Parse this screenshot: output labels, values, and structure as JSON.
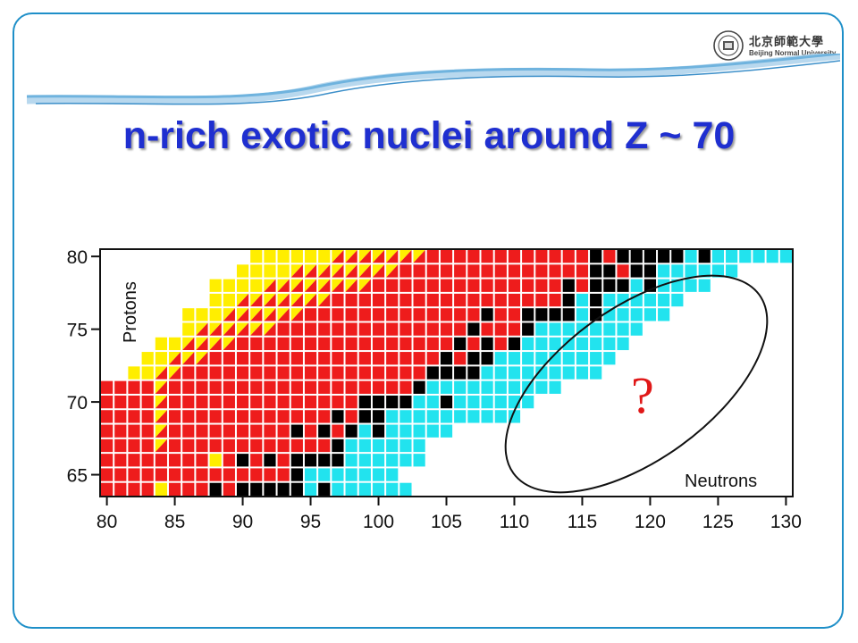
{
  "slide": {
    "title": "n-rich exotic nuclei around Z ~ 70",
    "accent_color": "#1f2fd0",
    "frame_color": "#1e8fc8"
  },
  "logo": {
    "name_cn": "北京師範大學",
    "name_en": "Beijing Normal University",
    "icon": "university-seal-icon"
  },
  "chart_data": {
    "type": "heatmap",
    "title": "",
    "xlabel": "Neutrons",
    "ylabel": "Protons",
    "xlim": [
      79.5,
      130.5
    ],
    "ylim": [
      63.5,
      80.5
    ],
    "x_ticks": [
      80,
      85,
      90,
      95,
      100,
      105,
      110,
      115,
      120,
      125,
      130
    ],
    "y_ticks": [
      65,
      70,
      75,
      80
    ],
    "annotation": "?",
    "colors": {
      "red": "#ee1c1c",
      "yellow": "#ffee00",
      "black": "#000000",
      "cyan": "#22e3ee"
    },
    "rows": [
      {
        "z": 80,
        "n_min": 91,
        "n_max": 130,
        "segments": [
          {
            "from": 91,
            "to": 96,
            "color": "yellow"
          },
          {
            "from": 97,
            "to": 103,
            "color": "red-yellow"
          },
          {
            "from": 104,
            "to": 115,
            "color": "red"
          },
          {
            "from": 116,
            "to": 116,
            "color": "black"
          },
          {
            "from": 117,
            "to": 117,
            "color": "red"
          },
          {
            "from": 118,
            "to": 122,
            "color": "black"
          },
          {
            "from": 123,
            "to": 123,
            "color": "cyan"
          },
          {
            "from": 124,
            "to": 124,
            "color": "black"
          },
          {
            "from": 125,
            "to": 130,
            "color": "cyan"
          }
        ]
      },
      {
        "z": 79,
        "n_min": 90,
        "n_max": 126,
        "segments": [
          {
            "from": 90,
            "to": 93,
            "color": "yellow"
          },
          {
            "from": 94,
            "to": 101,
            "color": "red-yellow"
          },
          {
            "from": 102,
            "to": 115,
            "color": "red"
          },
          {
            "from": 116,
            "to": 117,
            "color": "black"
          },
          {
            "from": 118,
            "to": 118,
            "color": "red"
          },
          {
            "from": 119,
            "to": 120,
            "color": "black"
          },
          {
            "from": 121,
            "to": 126,
            "color": "cyan"
          }
        ]
      },
      {
        "z": 78,
        "n_min": 88,
        "n_max": 124,
        "segments": [
          {
            "from": 88,
            "to": 91,
            "color": "yellow"
          },
          {
            "from": 92,
            "to": 99,
            "color": "red-yellow"
          },
          {
            "from": 100,
            "to": 113,
            "color": "red"
          },
          {
            "from": 114,
            "to": 114,
            "color": "black"
          },
          {
            "from": 115,
            "to": 115,
            "color": "red"
          },
          {
            "from": 116,
            "to": 118,
            "color": "black"
          },
          {
            "from": 119,
            "to": 119,
            "color": "cyan"
          },
          {
            "from": 120,
            "to": 120,
            "color": "black"
          },
          {
            "from": 121,
            "to": 124,
            "color": "cyan"
          }
        ]
      },
      {
        "z": 77,
        "n_min": 88,
        "n_max": 122,
        "segments": [
          {
            "from": 88,
            "to": 89,
            "color": "yellow"
          },
          {
            "from": 90,
            "to": 96,
            "color": "red-yellow"
          },
          {
            "from": 97,
            "to": 113,
            "color": "red"
          },
          {
            "from": 114,
            "to": 114,
            "color": "black"
          },
          {
            "from": 115,
            "to": 115,
            "color": "cyan"
          },
          {
            "from": 116,
            "to": 116,
            "color": "black"
          },
          {
            "from": 117,
            "to": 122,
            "color": "cyan"
          }
        ]
      },
      {
        "z": 76,
        "n_min": 86,
        "n_max": 121,
        "segments": [
          {
            "from": 86,
            "to": 88,
            "color": "yellow"
          },
          {
            "from": 89,
            "to": 94,
            "color": "red-yellow"
          },
          {
            "from": 95,
            "to": 107,
            "color": "red"
          },
          {
            "from": 108,
            "to": 108,
            "color": "black"
          },
          {
            "from": 109,
            "to": 110,
            "color": "red"
          },
          {
            "from": 111,
            "to": 114,
            "color": "black"
          },
          {
            "from": 115,
            "to": 115,
            "color": "cyan"
          },
          {
            "from": 116,
            "to": 116,
            "color": "black"
          },
          {
            "from": 117,
            "to": 121,
            "color": "cyan"
          }
        ]
      },
      {
        "z": 75,
        "n_min": 86,
        "n_max": 119,
        "segments": [
          {
            "from": 86,
            "to": 86,
            "color": "yellow"
          },
          {
            "from": 87,
            "to": 92,
            "color": "red-yellow"
          },
          {
            "from": 93,
            "to": 106,
            "color": "red"
          },
          {
            "from": 107,
            "to": 107,
            "color": "black"
          },
          {
            "from": 108,
            "to": 110,
            "color": "red"
          },
          {
            "from": 111,
            "to": 111,
            "color": "black"
          },
          {
            "from": 112,
            "to": 119,
            "color": "cyan"
          }
        ]
      },
      {
        "z": 74,
        "n_min": 84,
        "n_max": 118,
        "segments": [
          {
            "from": 84,
            "to": 85,
            "color": "yellow"
          },
          {
            "from": 86,
            "to": 89,
            "color": "red-yellow"
          },
          {
            "from": 90,
            "to": 105,
            "color": "red"
          },
          {
            "from": 106,
            "to": 106,
            "color": "black"
          },
          {
            "from": 107,
            "to": 107,
            "color": "red"
          },
          {
            "from": 108,
            "to": 108,
            "color": "black"
          },
          {
            "from": 109,
            "to": 109,
            "color": "red"
          },
          {
            "from": 110,
            "to": 110,
            "color": "black"
          },
          {
            "from": 111,
            "to": 118,
            "color": "cyan"
          }
        ]
      },
      {
        "z": 73,
        "n_min": 83,
        "n_max": 117,
        "segments": [
          {
            "from": 83,
            "to": 84,
            "color": "yellow"
          },
          {
            "from": 85,
            "to": 87,
            "color": "red-yellow"
          },
          {
            "from": 88,
            "to": 104,
            "color": "red"
          },
          {
            "from": 105,
            "to": 105,
            "color": "black"
          },
          {
            "from": 106,
            "to": 106,
            "color": "red"
          },
          {
            "from": 107,
            "to": 108,
            "color": "black"
          },
          {
            "from": 109,
            "to": 117,
            "color": "cyan"
          }
        ]
      },
      {
        "z": 72,
        "n_min": 82,
        "n_max": 116,
        "segments": [
          {
            "from": 82,
            "to": 83,
            "color": "yellow"
          },
          {
            "from": 84,
            "to": 85,
            "color": "red-yellow"
          },
          {
            "from": 86,
            "to": 103,
            "color": "red"
          },
          {
            "from": 104,
            "to": 107,
            "color": "black"
          },
          {
            "from": 108,
            "to": 116,
            "color": "cyan"
          }
        ]
      },
      {
        "z": 71,
        "n_min": 80,
        "n_max": 113,
        "segments": [
          {
            "from": 80,
            "to": 83,
            "color": "red"
          },
          {
            "from": 84,
            "to": 84,
            "color": "red-yellow"
          },
          {
            "from": 85,
            "to": 102,
            "color": "red"
          },
          {
            "from": 103,
            "to": 103,
            "color": "black"
          },
          {
            "from": 104,
            "to": 113,
            "color": "cyan"
          }
        ]
      },
      {
        "z": 70,
        "n_min": 80,
        "n_max": 111,
        "segments": [
          {
            "from": 80,
            "to": 83,
            "color": "red"
          },
          {
            "from": 84,
            "to": 84,
            "color": "red-yellow"
          },
          {
            "from": 85,
            "to": 98,
            "color": "red"
          },
          {
            "from": 99,
            "to": 99,
            "color": "black"
          },
          {
            "from": 100,
            "to": 102,
            "color": "black"
          },
          {
            "from": 103,
            "to": 104,
            "color": "cyan"
          },
          {
            "from": 105,
            "to": 105,
            "color": "black"
          },
          {
            "from": 106,
            "to": 111,
            "color": "cyan"
          }
        ]
      },
      {
        "z": 69,
        "n_min": 80,
        "n_max": 110,
        "segments": [
          {
            "from": 80,
            "to": 83,
            "color": "red"
          },
          {
            "from": 84,
            "to": 84,
            "color": "red-yellow"
          },
          {
            "from": 85,
            "to": 96,
            "color": "red"
          },
          {
            "from": 97,
            "to": 97,
            "color": "black"
          },
          {
            "from": 98,
            "to": 98,
            "color": "red"
          },
          {
            "from": 99,
            "to": 100,
            "color": "black"
          },
          {
            "from": 101,
            "to": 110,
            "color": "cyan"
          }
        ]
      },
      {
        "z": 68,
        "n_min": 80,
        "n_max": 105,
        "segments": [
          {
            "from": 80,
            "to": 83,
            "color": "red"
          },
          {
            "from": 84,
            "to": 84,
            "color": "red-yellow"
          },
          {
            "from": 85,
            "to": 93,
            "color": "red"
          },
          {
            "from": 94,
            "to": 94,
            "color": "black"
          },
          {
            "from": 95,
            "to": 95,
            "color": "red"
          },
          {
            "from": 96,
            "to": 96,
            "color": "black"
          },
          {
            "from": 97,
            "to": 97,
            "color": "red"
          },
          {
            "from": 98,
            "to": 98,
            "color": "black"
          },
          {
            "from": 99,
            "to": 99,
            "color": "cyan"
          },
          {
            "from": 100,
            "to": 100,
            "color": "black"
          },
          {
            "from": 101,
            "to": 105,
            "color": "cyan"
          }
        ]
      },
      {
        "z": 67,
        "n_min": 80,
        "n_max": 103,
        "segments": [
          {
            "from": 80,
            "to": 83,
            "color": "red"
          },
          {
            "from": 84,
            "to": 84,
            "color": "red-yellow"
          },
          {
            "from": 85,
            "to": 96,
            "color": "red"
          },
          {
            "from": 97,
            "to": 97,
            "color": "black"
          },
          {
            "from": 98,
            "to": 103,
            "color": "cyan"
          }
        ]
      },
      {
        "z": 66,
        "n_min": 80,
        "n_max": 103,
        "segments": [
          {
            "from": 80,
            "to": 87,
            "color": "red"
          },
          {
            "from": 88,
            "to": 88,
            "color": "yellow"
          },
          {
            "from": 89,
            "to": 89,
            "color": "red"
          },
          {
            "from": 90,
            "to": 90,
            "color": "black"
          },
          {
            "from": 91,
            "to": 91,
            "color": "red"
          },
          {
            "from": 92,
            "to": 92,
            "color": "black"
          },
          {
            "from": 93,
            "to": 93,
            "color": "red"
          },
          {
            "from": 94,
            "to": 97,
            "color": "black"
          },
          {
            "from": 98,
            "to": 103,
            "color": "cyan"
          }
        ]
      },
      {
        "z": 65,
        "n_min": 80,
        "n_max": 101,
        "segments": [
          {
            "from": 80,
            "to": 93,
            "color": "red"
          },
          {
            "from": 94,
            "to": 94,
            "color": "black"
          },
          {
            "from": 95,
            "to": 101,
            "color": "cyan"
          }
        ]
      },
      {
        "z": 64,
        "n_min": 80,
        "n_max": 102,
        "segments": [
          {
            "from": 80,
            "to": 83,
            "color": "red"
          },
          {
            "from": 84,
            "to": 84,
            "color": "yellow"
          },
          {
            "from": 85,
            "to": 87,
            "color": "red"
          },
          {
            "from": 88,
            "to": 88,
            "color": "black"
          },
          {
            "from": 89,
            "to": 89,
            "color": "red"
          },
          {
            "from": 90,
            "to": 94,
            "color": "black"
          },
          {
            "from": 95,
            "to": 95,
            "color": "cyan"
          },
          {
            "from": 96,
            "to": 96,
            "color": "black"
          },
          {
            "from": 97,
            "to": 102,
            "color": "cyan"
          }
        ]
      }
    ]
  }
}
